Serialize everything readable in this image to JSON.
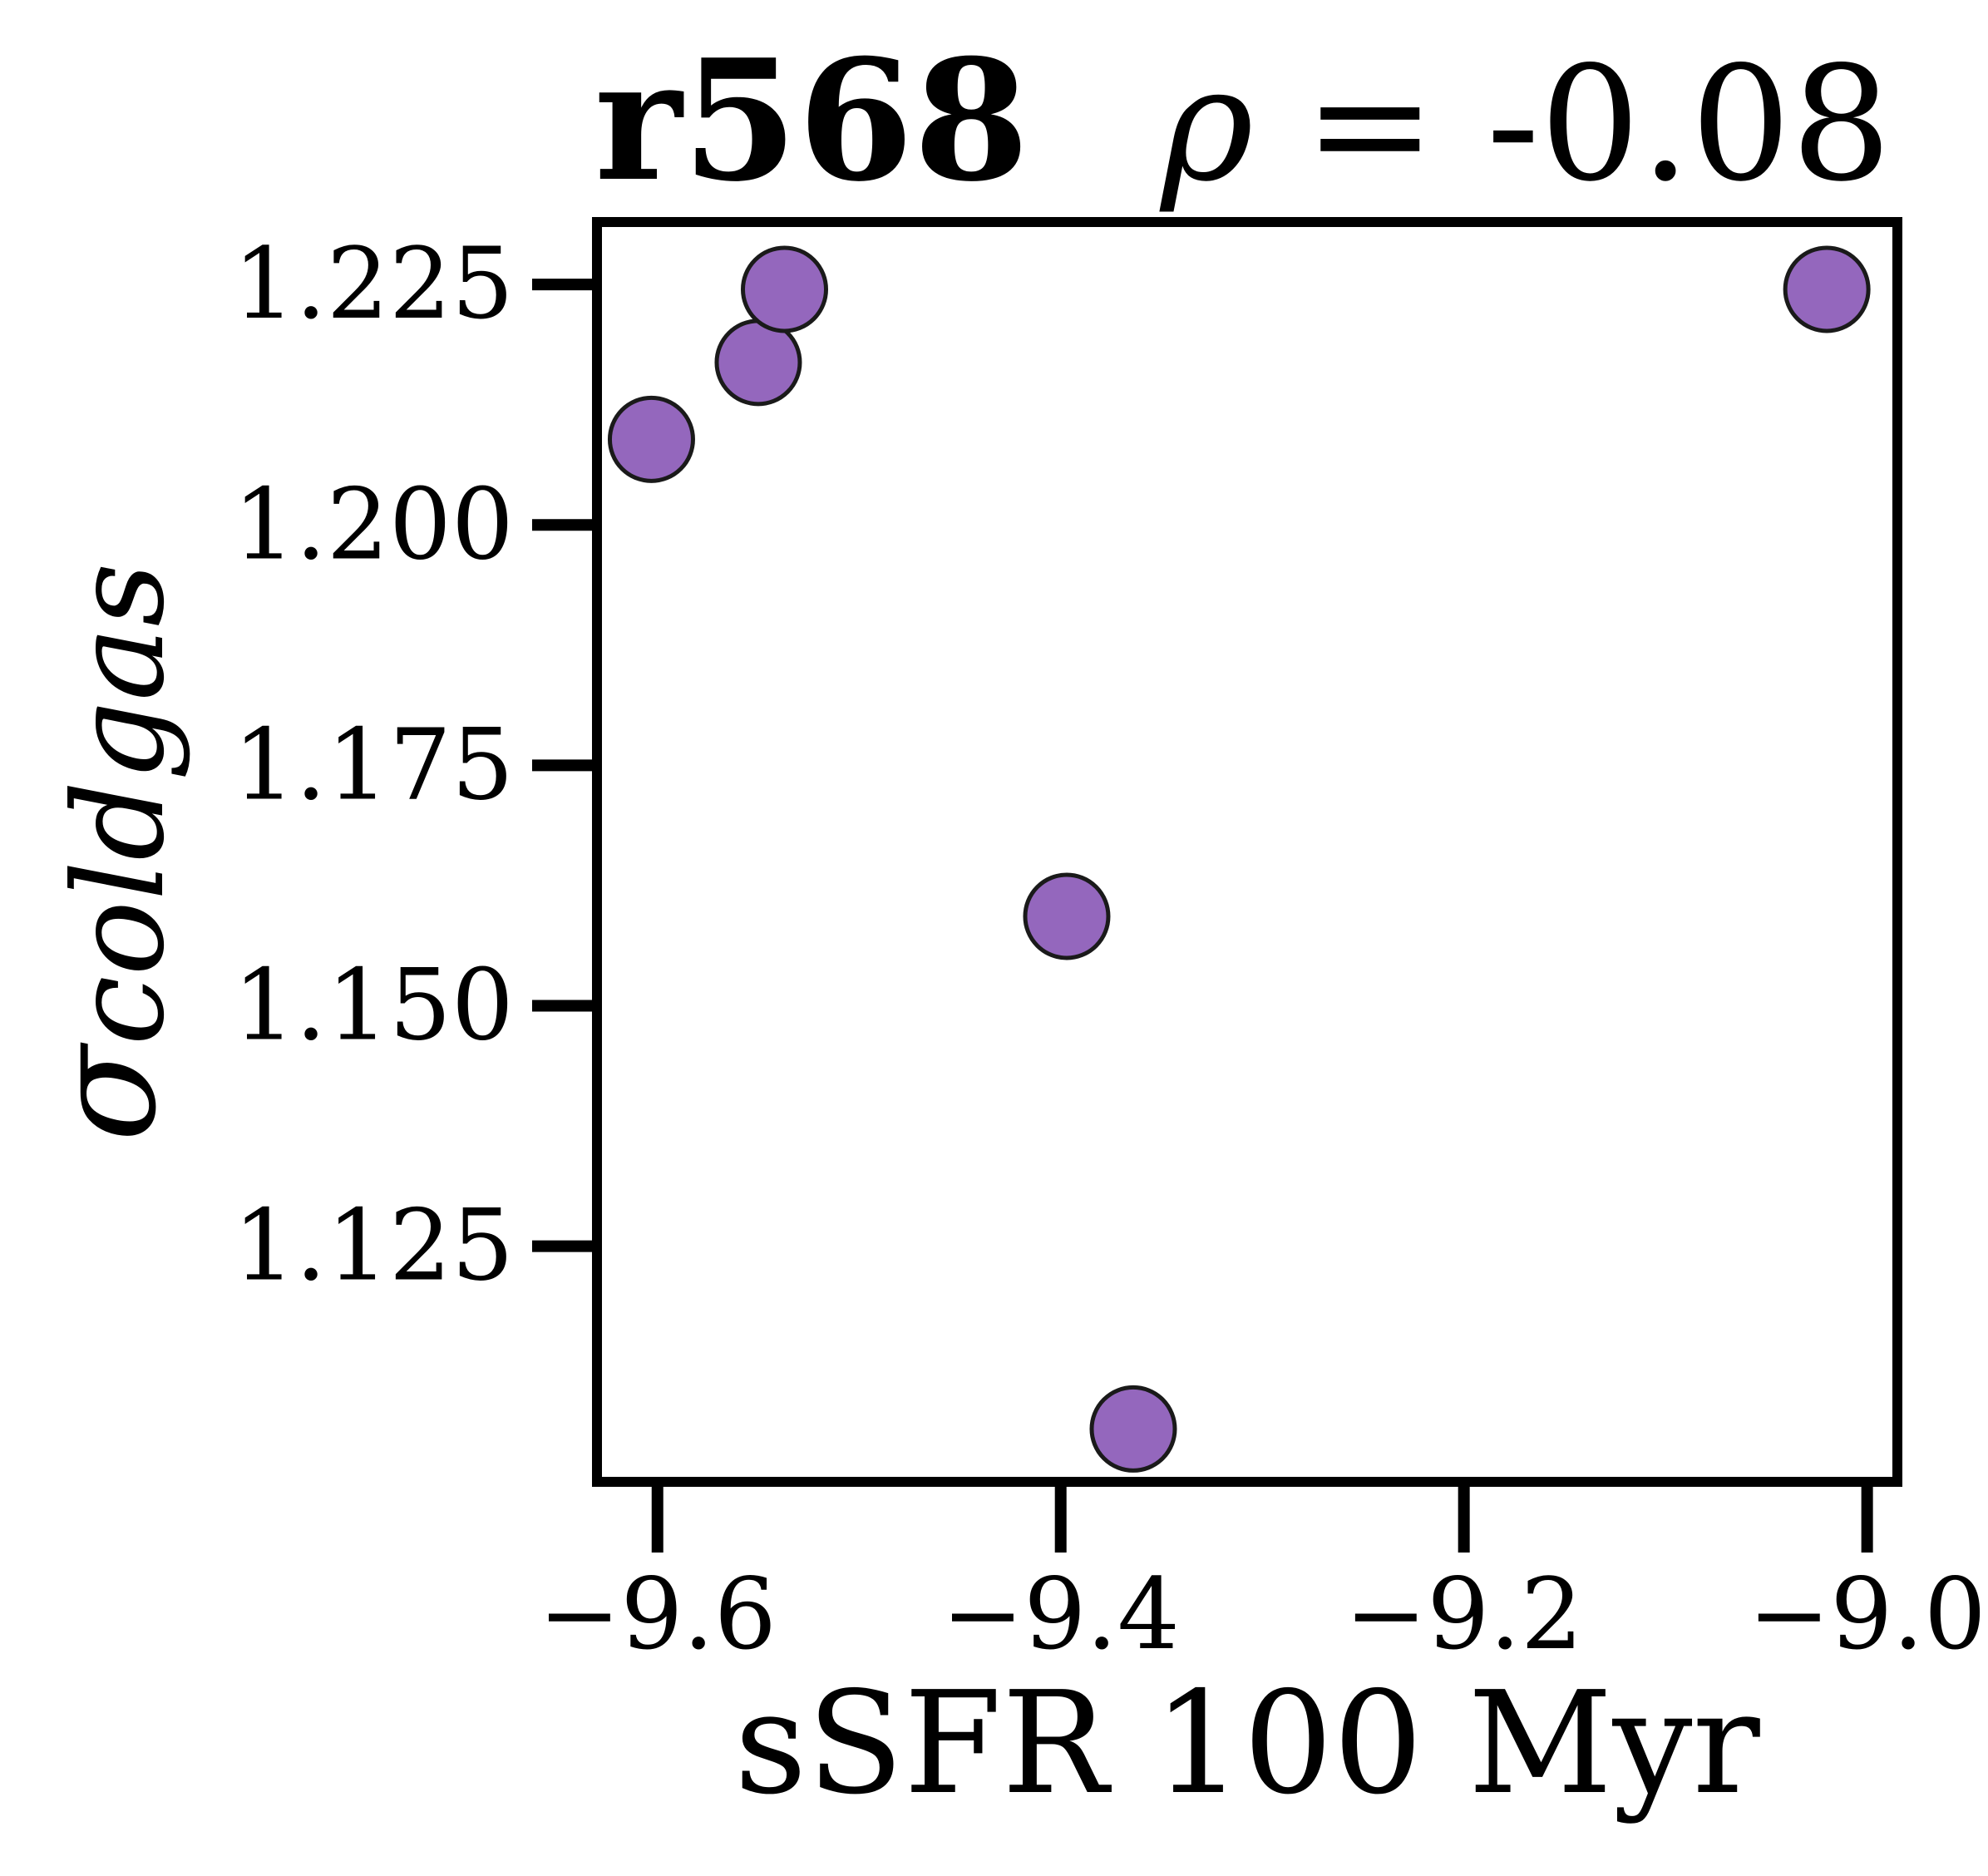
{
  "chart_data": {
    "type": "scatter",
    "title": "r568",
    "correlation_text": {
      "symbol": "ρ",
      "operator": " = ",
      "value": "-0.08"
    },
    "xlabel": "sSFR 100 Myr",
    "ylabel": {
      "symbol": "σ",
      "subscript": "coldgas"
    },
    "xlim": [
      -9.63,
      -8.985
    ],
    "ylim": [
      1.1005,
      1.2315
    ],
    "xticks": [
      -9.6,
      -9.4,
      -9.2,
      -9.0
    ],
    "xtick_labels": [
      "−9.6",
      "−9.4",
      "−9.2",
      "−9.0"
    ],
    "yticks": [
      1.125,
      1.15,
      1.175,
      1.2,
      1.225
    ],
    "ytick_labels": [
      "1.125",
      "1.150",
      "1.175",
      "1.200",
      "1.225"
    ],
    "grid": false,
    "marker_color": "#9467bd",
    "marker_edge_color": "#1a1a1a",
    "points": [
      {
        "x": -9.603,
        "y": 1.2089
      },
      {
        "x": -9.55,
        "y": 1.2169
      },
      {
        "x": -9.537,
        "y": 1.2245
      },
      {
        "x": -9.397,
        "y": 1.1593
      },
      {
        "x": -9.364,
        "y": 1.106
      },
      {
        "x": -9.02,
        "y": 1.2245
      }
    ]
  }
}
